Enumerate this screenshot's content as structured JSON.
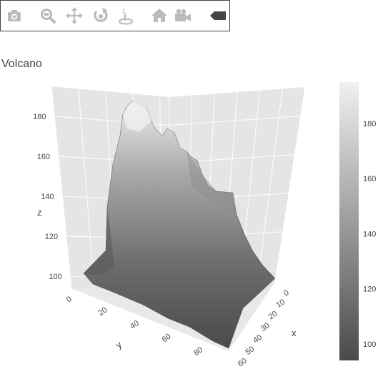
{
  "toolbar": {
    "buttons": [
      {
        "name": "download-plot-button",
        "icon": "camera-icon"
      },
      {
        "name": "zoom-button",
        "icon": "zoom-icon"
      },
      {
        "name": "pan-button",
        "icon": "pan-icon"
      },
      {
        "name": "orbit-rotation-button",
        "icon": "orbit-icon"
      },
      {
        "name": "turntable-rotation-button",
        "icon": "turntable-icon"
      },
      {
        "name": "reset-camera-button",
        "icon": "home-icon"
      },
      {
        "name": "last-save-camera-button",
        "icon": "video-camera-icon"
      },
      {
        "name": "plotly-logo-button",
        "icon": "plotly-logo-icon"
      }
    ],
    "icon_color": "#bbbbbb",
    "border_color": "#444444"
  },
  "chart_data": {
    "type": "surface",
    "title": "Volcano",
    "xlabel": "x",
    "ylabel": "y",
    "zlabel": "z",
    "x_ticks": [
      "0",
      "10",
      "20",
      "30",
      "40",
      "50",
      "60"
    ],
    "y_ticks": [
      "0",
      "20",
      "40",
      "60",
      "80"
    ],
    "z_ticks": [
      "100",
      "120",
      "140",
      "160",
      "180"
    ],
    "xlim": [
      0,
      60
    ],
    "ylim": [
      0,
      87
    ],
    "zlim": [
      94,
      195
    ],
    "colorscale": "greys",
    "colorbar": {
      "ticks": [
        "100",
        "120",
        "140",
        "160",
        "180"
      ],
      "range": [
        94,
        195
      ],
      "color_low": "#4a4a4a",
      "color_high": "#f0f0f0"
    },
    "grid": true,
    "scene_background": "#e5e5e5",
    "surface_description_values": {
      "base_level": 100,
      "peak": 195
    }
  }
}
